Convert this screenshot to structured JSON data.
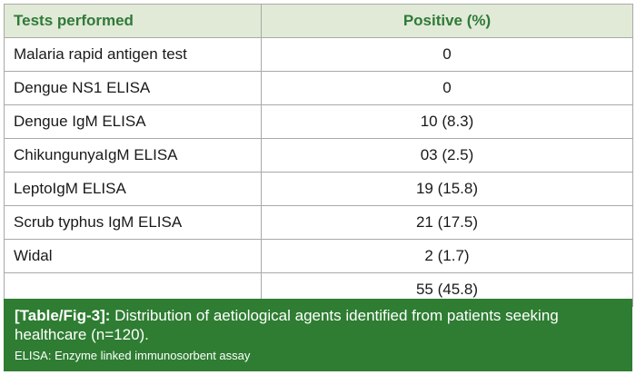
{
  "table": {
    "headers": {
      "test": "Tests performed",
      "positive": "Positive (%)"
    },
    "rows": [
      {
        "test": "Malaria rapid antigen test",
        "positive": "0"
      },
      {
        "test": "Dengue NS1 ELISA",
        "positive": "0"
      },
      {
        "test": "Dengue IgM ELISA",
        "positive": "10 (8.3)"
      },
      {
        "test": "ChikungunyaIgM ELISA",
        "positive": "03 (2.5)"
      },
      {
        "test": "LeptoIgM ELISA",
        "positive": "19 (15.8)"
      },
      {
        "test": "Scrub typhus IgM ELISA",
        "positive": "21 (17.5)"
      },
      {
        "test": "Widal",
        "positive": "2 (1.7)"
      },
      {
        "test": "",
        "positive": "55 (45.8)"
      }
    ]
  },
  "caption": {
    "label": "[Table/Fig-3]:",
    "text": " Distribution of aetiological agents identified from patients seeking healthcare (n=120).",
    "note": "ELISA: Enzyme linked immunosorbent assay"
  },
  "colors": {
    "header_bg": "#e1ead6",
    "header_text": "#2f7a3a",
    "caption_bg": "#2e7d32"
  }
}
